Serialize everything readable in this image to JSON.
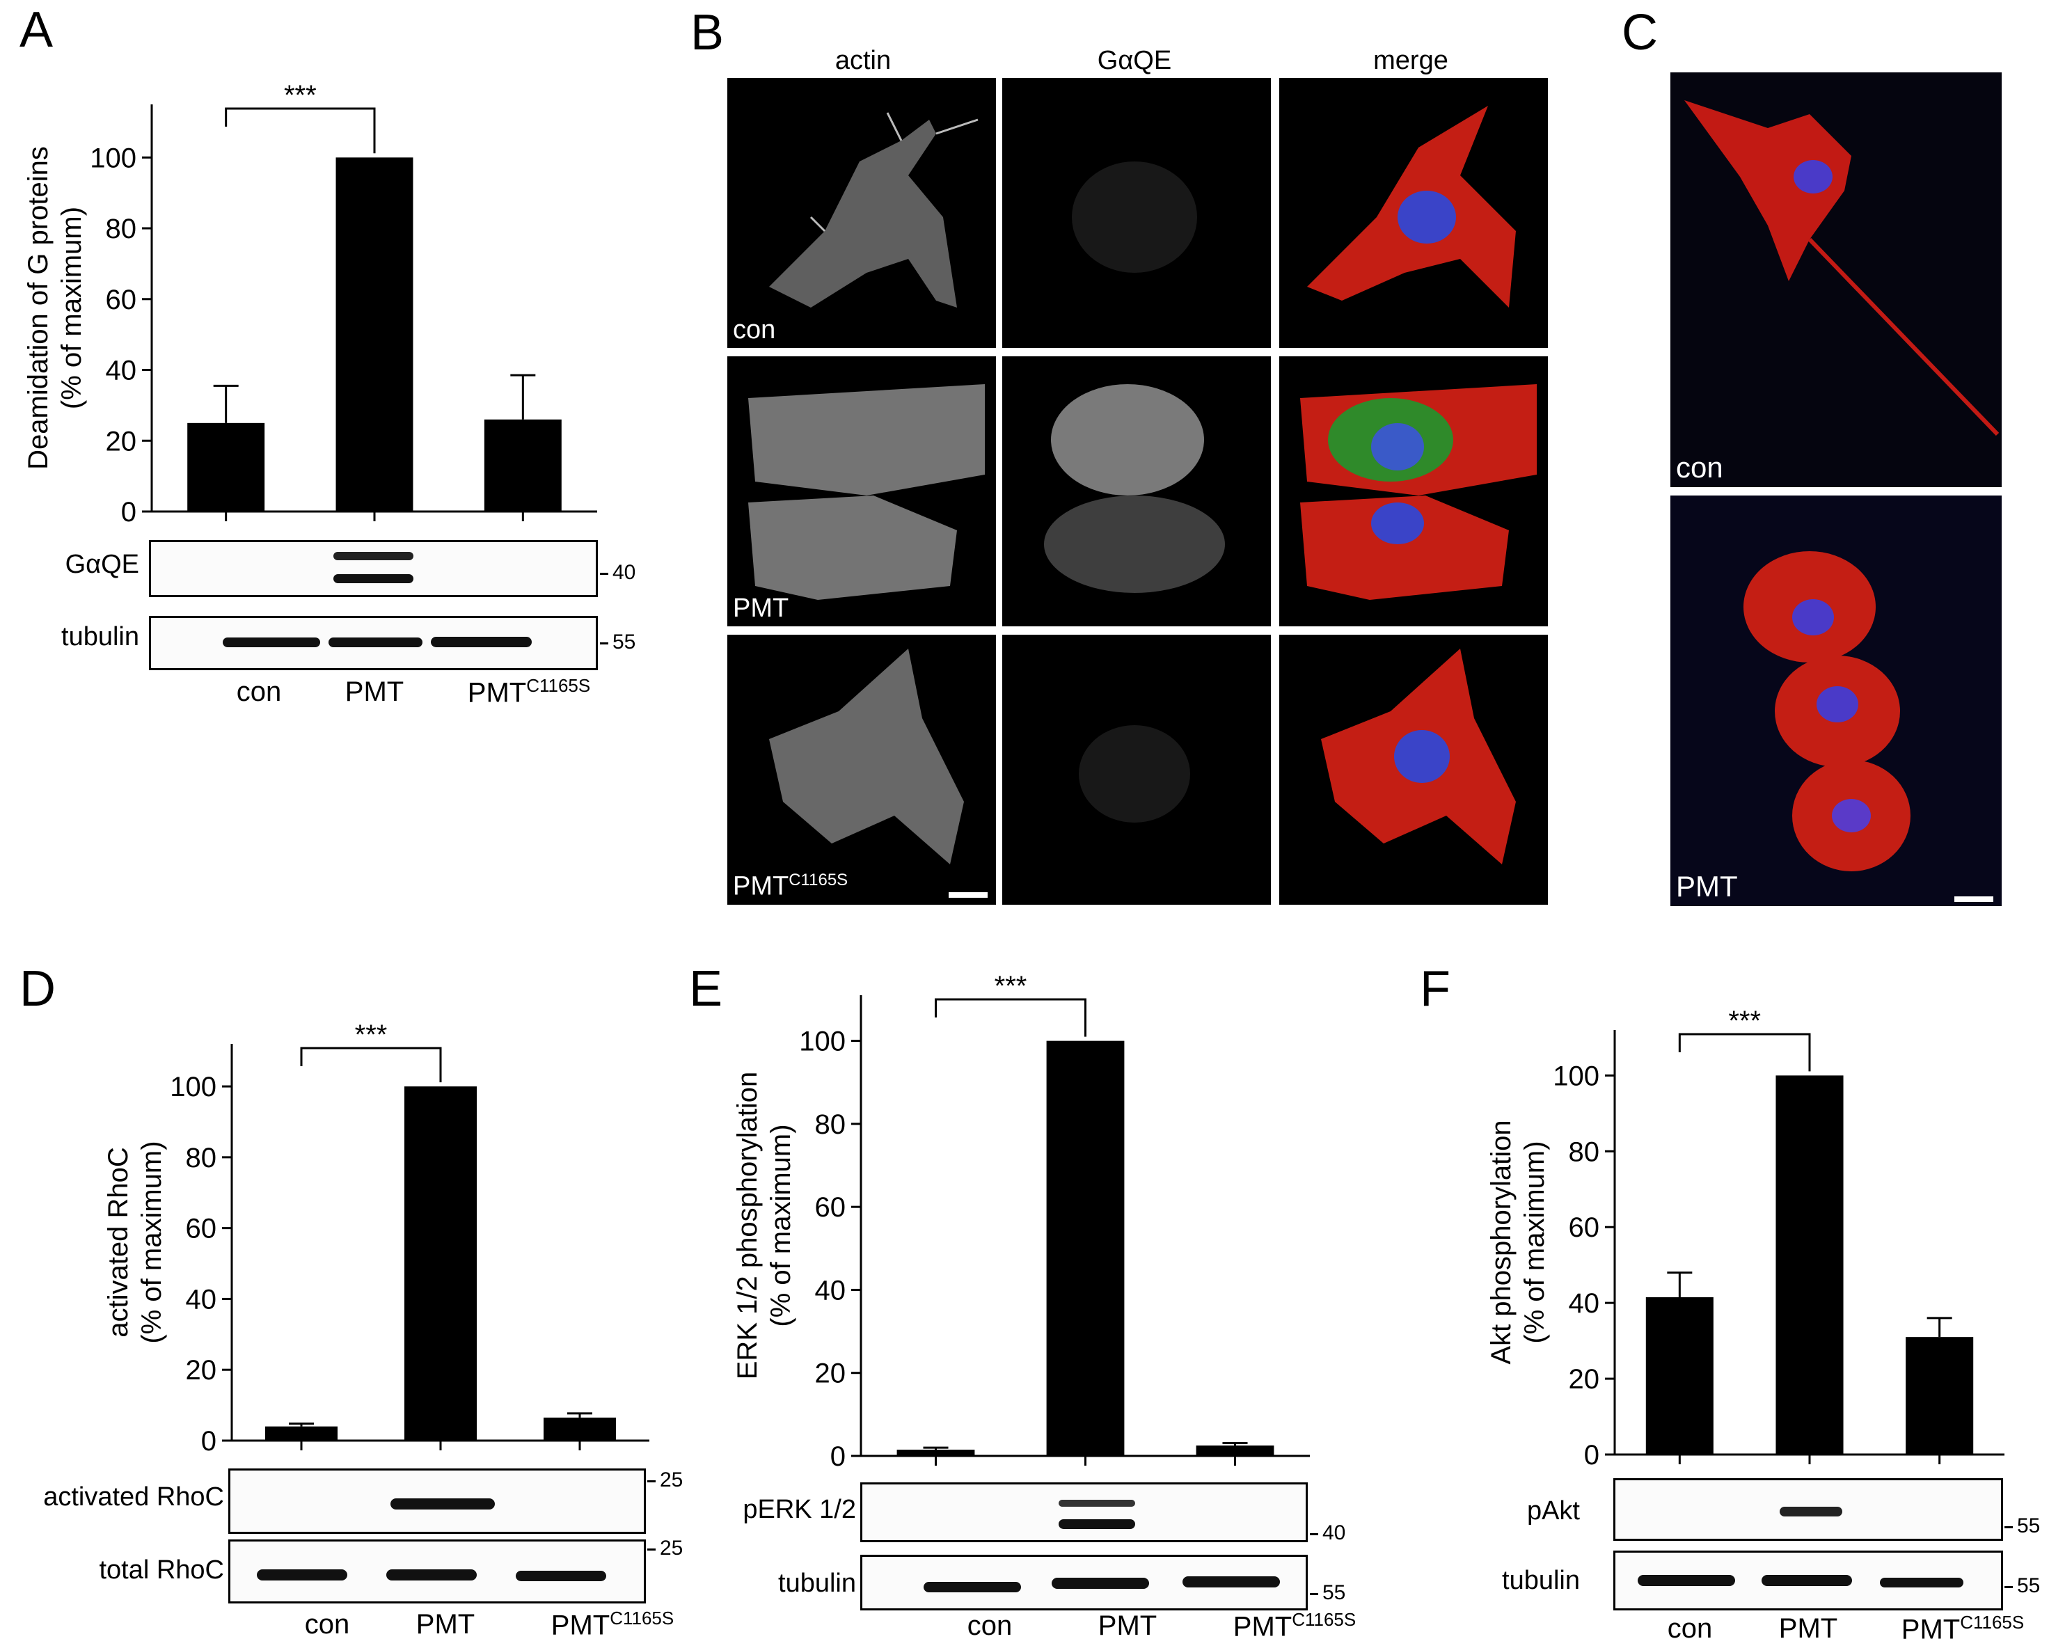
{
  "panels": {
    "A": "A",
    "B": "B",
    "C": "C",
    "D": "D",
    "E": "E",
    "F": "F"
  },
  "micro_headers": {
    "actin": "actin",
    "gaqe": "GαQE",
    "merge": "merge"
  },
  "micro_rows": {
    "con": "con",
    "pmt": "PMT",
    "mutant": "PMT",
    "mutant_sup": "C1165S"
  },
  "panel_c_labels": {
    "con": "con",
    "pmt": "PMT"
  },
  "significance": "***",
  "blots": {
    "A_top": "GαQE",
    "A_bottom": "tubulin",
    "D_top": "activated RhoC",
    "D_bottom": "total RhoC",
    "E_top": "pERK 1/2",
    "E_bottom": "tubulin",
    "F_top": "pAkt",
    "F_bottom": "tubulin"
  },
  "markers": {
    "A_top": "40",
    "A_bottom": "55",
    "D_top": "25",
    "D_bottom": "25",
    "E_top": "40",
    "E_bottom": "55",
    "F_top": "55",
    "F_bottom": "55"
  },
  "xlabels": {
    "con": "con",
    "pmt": "PMT",
    "mutant": "PMT",
    "mutant_sup": "C1165S"
  },
  "chart_data": [
    {
      "panel": "A",
      "type": "bar",
      "categories": [
        "con",
        "PMT",
        "PMTC1165S"
      ],
      "values": [
        25,
        100,
        26
      ],
      "errors": [
        10.5,
        0,
        12.5
      ],
      "ylabel_lines": [
        "Deamidation of G proteins",
        "(% of maximum)"
      ],
      "yticks": [
        0,
        20,
        40,
        60,
        80,
        100
      ],
      "ylim": [
        0,
        115
      ]
    },
    {
      "panel": "D",
      "type": "bar",
      "categories": [
        "con",
        "PMT",
        "PMTC1165S"
      ],
      "values": [
        4,
        100,
        6.5
      ],
      "errors": [
        0.8,
        0,
        1.2
      ],
      "ylabel_lines": [
        "activated RhoC",
        "(% of maximum)"
      ],
      "yticks": [
        0,
        20,
        40,
        60,
        80,
        100
      ],
      "ylim": [
        0,
        112
      ]
    },
    {
      "panel": "E",
      "type": "bar",
      "categories": [
        "con",
        "PMT",
        "PMTC1165S"
      ],
      "values": [
        1.5,
        100,
        2.5
      ],
      "errors": [
        0.5,
        0,
        0.6
      ],
      "ylabel_lines": [
        "ERK 1/2 phosphorylation",
        "(% of maximum)"
      ],
      "yticks": [
        0,
        20,
        40,
        60,
        80,
        100
      ],
      "ylim": [
        0,
        111
      ]
    },
    {
      "panel": "F",
      "type": "bar",
      "categories": [
        "con",
        "PMT",
        "PMTC1165S"
      ],
      "values": [
        41.5,
        100,
        31
      ],
      "errors": [
        6.5,
        0,
        5
      ],
      "ylabel_lines": [
        "Akt phosphorylation",
        "(% of maximum)"
      ],
      "yticks": [
        0,
        20,
        40,
        60,
        80,
        100
      ],
      "ylim": [
        0,
        112
      ]
    }
  ]
}
